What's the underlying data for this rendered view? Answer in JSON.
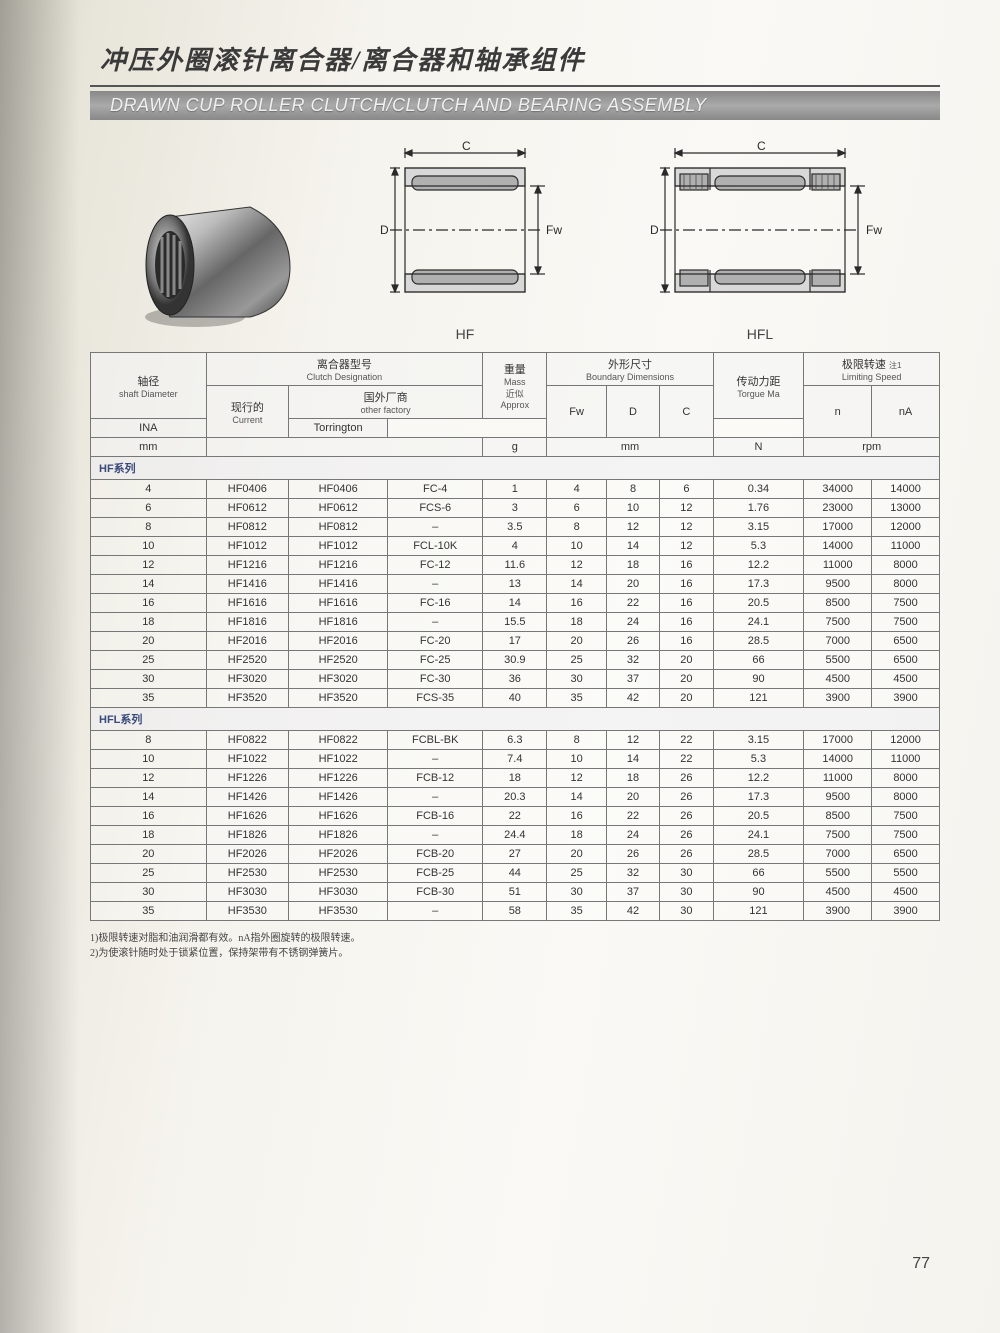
{
  "header": {
    "title_cn": "冲压外圈滚针离合器/离合器和轴承组件",
    "title_en": "DRAWN CUP ROLLER CLUTCH/CLUTCH AND BEARING ASSEMBLY"
  },
  "diagrams": {
    "dim_c": "C",
    "dim_d": "D",
    "dim_fw": "Fw",
    "label_hf": "HF",
    "label_hfl": "HFL",
    "colors": {
      "line": "#2a2a2a",
      "fill_roller": "#b0b0b0",
      "fill_body": "#e8e8e8"
    }
  },
  "table": {
    "header": {
      "shaft_dia_cn": "轴径",
      "shaft_dia_en": "shaft Diameter",
      "clutch_cn": "离合器型号",
      "clutch_en": "Clutch Designation",
      "mass_cn": "重量",
      "mass_en": "Mass",
      "approx_cn": "近似",
      "approx_en": "Approx",
      "bdim_cn": "外形尺寸",
      "bdim_en": "Boundary Dimensions",
      "torque_cn": "传动力距",
      "torque_en": "Torgue Ma",
      "speed_cn": "极限转速",
      "speed_en": "Limiting Speed",
      "speed_note": "注1",
      "current_cn": "现行的",
      "current_en": "Current",
      "other_cn": "国外厂商",
      "other_en": "other factory",
      "ina": "INA",
      "torr": "Torrington",
      "fw": "Fw",
      "d": "D",
      "c": "C",
      "n": "n",
      "na": "nA",
      "unit_mm": "mm",
      "unit_g": "g",
      "unit_N": "N",
      "unit_rpm": "rpm"
    },
    "series1": "HF系列",
    "series2": "HFL系列",
    "rows_hf": [
      {
        "dia": "4",
        "cur": "HF0406",
        "ina": "HF0406",
        "tor": "FC-4",
        "mass": "1",
        "fw": "4",
        "D": "8",
        "C": "6",
        "tq": "0.34",
        "n": "34000",
        "na": "14000"
      },
      {
        "dia": "6",
        "cur": "HF0612",
        "ina": "HF0612",
        "tor": "FCS-6",
        "mass": "3",
        "fw": "6",
        "D": "10",
        "C": "12",
        "tq": "1.76",
        "n": "23000",
        "na": "13000"
      },
      {
        "dia": "8",
        "cur": "HF0812",
        "ina": "HF0812",
        "tor": "–",
        "mass": "3.5",
        "fw": "8",
        "D": "12",
        "C": "12",
        "tq": "3.15",
        "n": "17000",
        "na": "12000"
      },
      {
        "dia": "10",
        "cur": "HF1012",
        "ina": "HF1012",
        "tor": "FCL-10K",
        "mass": "4",
        "fw": "10",
        "D": "14",
        "C": "12",
        "tq": "5.3",
        "n": "14000",
        "na": "11000"
      },
      {
        "dia": "12",
        "cur": "HF1216",
        "ina": "HF1216",
        "tor": "FC-12",
        "mass": "11.6",
        "fw": "12",
        "D": "18",
        "C": "16",
        "tq": "12.2",
        "n": "11000",
        "na": "8000"
      },
      {
        "dia": "14",
        "cur": "HF1416",
        "ina": "HF1416",
        "tor": "–",
        "mass": "13",
        "fw": "14",
        "D": "20",
        "C": "16",
        "tq": "17.3",
        "n": "9500",
        "na": "8000"
      },
      {
        "dia": "16",
        "cur": "HF1616",
        "ina": "HF1616",
        "tor": "FC-16",
        "mass": "14",
        "fw": "16",
        "D": "22",
        "C": "16",
        "tq": "20.5",
        "n": "8500",
        "na": "7500"
      },
      {
        "dia": "18",
        "cur": "HF1816",
        "ina": "HF1816",
        "tor": "–",
        "mass": "15.5",
        "fw": "18",
        "D": "24",
        "C": "16",
        "tq": "24.1",
        "n": "7500",
        "na": "7500"
      },
      {
        "dia": "20",
        "cur": "HF2016",
        "ina": "HF2016",
        "tor": "FC-20",
        "mass": "17",
        "fw": "20",
        "D": "26",
        "C": "16",
        "tq": "28.5",
        "n": "7000",
        "na": "6500"
      },
      {
        "dia": "25",
        "cur": "HF2520",
        "ina": "HF2520",
        "tor": "FC-25",
        "mass": "30.9",
        "fw": "25",
        "D": "32",
        "C": "20",
        "tq": "66",
        "n": "5500",
        "na": "6500"
      },
      {
        "dia": "30",
        "cur": "HF3020",
        "ina": "HF3020",
        "tor": "FC-30",
        "mass": "36",
        "fw": "30",
        "D": "37",
        "C": "20",
        "tq": "90",
        "n": "4500",
        "na": "4500"
      },
      {
        "dia": "35",
        "cur": "HF3520",
        "ina": "HF3520",
        "tor": "FCS-35",
        "mass": "40",
        "fw": "35",
        "D": "42",
        "C": "20",
        "tq": "121",
        "n": "3900",
        "na": "3900"
      }
    ],
    "rows_hfl": [
      {
        "dia": "8",
        "cur": "HF0822",
        "ina": "HF0822",
        "tor": "FCBL-BK",
        "mass": "6.3",
        "fw": "8",
        "D": "12",
        "C": "22",
        "tq": "3.15",
        "n": "17000",
        "na": "12000"
      },
      {
        "dia": "10",
        "cur": "HF1022",
        "ina": "HF1022",
        "tor": "–",
        "mass": "7.4",
        "fw": "10",
        "D": "14",
        "C": "22",
        "tq": "5.3",
        "n": "14000",
        "na": "11000"
      },
      {
        "dia": "12",
        "cur": "HF1226",
        "ina": "HF1226",
        "tor": "FCB-12",
        "mass": "18",
        "fw": "12",
        "D": "18",
        "C": "26",
        "tq": "12.2",
        "n": "11000",
        "na": "8000"
      },
      {
        "dia": "14",
        "cur": "HF1426",
        "ina": "HF1426",
        "tor": "–",
        "mass": "20.3",
        "fw": "14",
        "D": "20",
        "C": "26",
        "tq": "17.3",
        "n": "9500",
        "na": "8000"
      },
      {
        "dia": "16",
        "cur": "HF1626",
        "ina": "HF1626",
        "tor": "FCB-16",
        "mass": "22",
        "fw": "16",
        "D": "22",
        "C": "26",
        "tq": "20.5",
        "n": "8500",
        "na": "7500"
      },
      {
        "dia": "18",
        "cur": "HF1826",
        "ina": "HF1826",
        "tor": "–",
        "mass": "24.4",
        "fw": "18",
        "D": "24",
        "C": "26",
        "tq": "24.1",
        "n": "7500",
        "na": "7500"
      },
      {
        "dia": "20",
        "cur": "HF2026",
        "ina": "HF2026",
        "tor": "FCB-20",
        "mass": "27",
        "fw": "20",
        "D": "26",
        "C": "26",
        "tq": "28.5",
        "n": "7000",
        "na": "6500"
      },
      {
        "dia": "25",
        "cur": "HF2530",
        "ina": "HF2530",
        "tor": "FCB-25",
        "mass": "44",
        "fw": "25",
        "D": "32",
        "C": "30",
        "tq": "66",
        "n": "5500",
        "na": "5500"
      },
      {
        "dia": "30",
        "cur": "HF3030",
        "ina": "HF3030",
        "tor": "FCB-30",
        "mass": "51",
        "fw": "30",
        "D": "37",
        "C": "30",
        "tq": "90",
        "n": "4500",
        "na": "4500"
      },
      {
        "dia": "35",
        "cur": "HF3530",
        "ina": "HF3530",
        "tor": "–",
        "mass": "58",
        "fw": "35",
        "D": "42",
        "C": "30",
        "tq": "121",
        "n": "3900",
        "na": "3900"
      }
    ]
  },
  "footnotes": {
    "f1": "1)极限转速对脂和油润滑都有效。nA指外圈旋转的极限转速。",
    "f2": "2)为使滚针随时处于锁紧位置，保持架带有不锈钢弹簧片。"
  },
  "pagenum": "77"
}
